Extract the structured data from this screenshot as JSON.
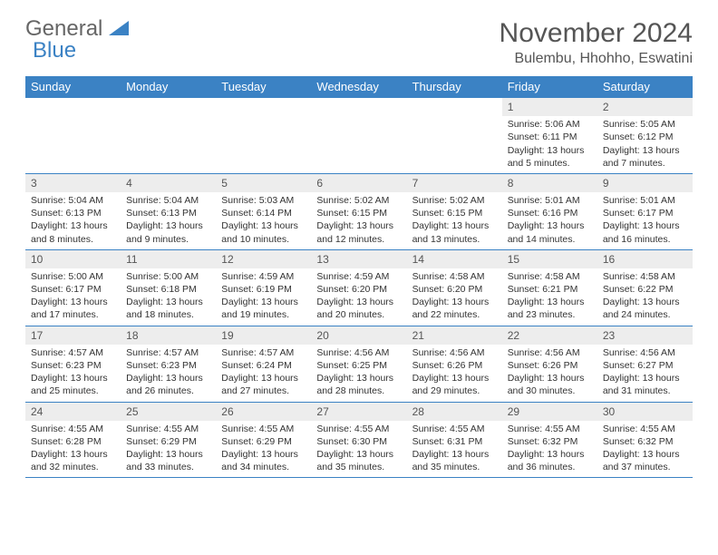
{
  "logo": {
    "gray": "General",
    "blue": "Blue"
  },
  "header": {
    "month_title": "November 2024",
    "location": "Bulembu, Hhohho, Eswatini"
  },
  "colors": {
    "header_bg": "#3b82c4",
    "date_bar_bg": "#ededed",
    "text": "#333333"
  },
  "day_names": [
    "Sunday",
    "Monday",
    "Tuesday",
    "Wednesday",
    "Thursday",
    "Friday",
    "Saturday"
  ],
  "weeks": [
    [
      null,
      null,
      null,
      null,
      null,
      {
        "d": "1",
        "sr": "5:06 AM",
        "ss": "6:11 PM",
        "dl": "13 hours and 5 minutes."
      },
      {
        "d": "2",
        "sr": "5:05 AM",
        "ss": "6:12 PM",
        "dl": "13 hours and 7 minutes."
      }
    ],
    [
      {
        "d": "3",
        "sr": "5:04 AM",
        "ss": "6:13 PM",
        "dl": "13 hours and 8 minutes."
      },
      {
        "d": "4",
        "sr": "5:04 AM",
        "ss": "6:13 PM",
        "dl": "13 hours and 9 minutes."
      },
      {
        "d": "5",
        "sr": "5:03 AM",
        "ss": "6:14 PM",
        "dl": "13 hours and 10 minutes."
      },
      {
        "d": "6",
        "sr": "5:02 AM",
        "ss": "6:15 PM",
        "dl": "13 hours and 12 minutes."
      },
      {
        "d": "7",
        "sr": "5:02 AM",
        "ss": "6:15 PM",
        "dl": "13 hours and 13 minutes."
      },
      {
        "d": "8",
        "sr": "5:01 AM",
        "ss": "6:16 PM",
        "dl": "13 hours and 14 minutes."
      },
      {
        "d": "9",
        "sr": "5:01 AM",
        "ss": "6:17 PM",
        "dl": "13 hours and 16 minutes."
      }
    ],
    [
      {
        "d": "10",
        "sr": "5:00 AM",
        "ss": "6:17 PM",
        "dl": "13 hours and 17 minutes."
      },
      {
        "d": "11",
        "sr": "5:00 AM",
        "ss": "6:18 PM",
        "dl": "13 hours and 18 minutes."
      },
      {
        "d": "12",
        "sr": "4:59 AM",
        "ss": "6:19 PM",
        "dl": "13 hours and 19 minutes."
      },
      {
        "d": "13",
        "sr": "4:59 AM",
        "ss": "6:20 PM",
        "dl": "13 hours and 20 minutes."
      },
      {
        "d": "14",
        "sr": "4:58 AM",
        "ss": "6:20 PM",
        "dl": "13 hours and 22 minutes."
      },
      {
        "d": "15",
        "sr": "4:58 AM",
        "ss": "6:21 PM",
        "dl": "13 hours and 23 minutes."
      },
      {
        "d": "16",
        "sr": "4:58 AM",
        "ss": "6:22 PM",
        "dl": "13 hours and 24 minutes."
      }
    ],
    [
      {
        "d": "17",
        "sr": "4:57 AM",
        "ss": "6:23 PM",
        "dl": "13 hours and 25 minutes."
      },
      {
        "d": "18",
        "sr": "4:57 AM",
        "ss": "6:23 PM",
        "dl": "13 hours and 26 minutes."
      },
      {
        "d": "19",
        "sr": "4:57 AM",
        "ss": "6:24 PM",
        "dl": "13 hours and 27 minutes."
      },
      {
        "d": "20",
        "sr": "4:56 AM",
        "ss": "6:25 PM",
        "dl": "13 hours and 28 minutes."
      },
      {
        "d": "21",
        "sr": "4:56 AM",
        "ss": "6:26 PM",
        "dl": "13 hours and 29 minutes."
      },
      {
        "d": "22",
        "sr": "4:56 AM",
        "ss": "6:26 PM",
        "dl": "13 hours and 30 minutes."
      },
      {
        "d": "23",
        "sr": "4:56 AM",
        "ss": "6:27 PM",
        "dl": "13 hours and 31 minutes."
      }
    ],
    [
      {
        "d": "24",
        "sr": "4:55 AM",
        "ss": "6:28 PM",
        "dl": "13 hours and 32 minutes."
      },
      {
        "d": "25",
        "sr": "4:55 AM",
        "ss": "6:29 PM",
        "dl": "13 hours and 33 minutes."
      },
      {
        "d": "26",
        "sr": "4:55 AM",
        "ss": "6:29 PM",
        "dl": "13 hours and 34 minutes."
      },
      {
        "d": "27",
        "sr": "4:55 AM",
        "ss": "6:30 PM",
        "dl": "13 hours and 35 minutes."
      },
      {
        "d": "28",
        "sr": "4:55 AM",
        "ss": "6:31 PM",
        "dl": "13 hours and 35 minutes."
      },
      {
        "d": "29",
        "sr": "4:55 AM",
        "ss": "6:32 PM",
        "dl": "13 hours and 36 minutes."
      },
      {
        "d": "30",
        "sr": "4:55 AM",
        "ss": "6:32 PM",
        "dl": "13 hours and 37 minutes."
      }
    ]
  ],
  "labels": {
    "sunrise": "Sunrise: ",
    "sunset": "Sunset: ",
    "daylight": "Daylight: "
  }
}
